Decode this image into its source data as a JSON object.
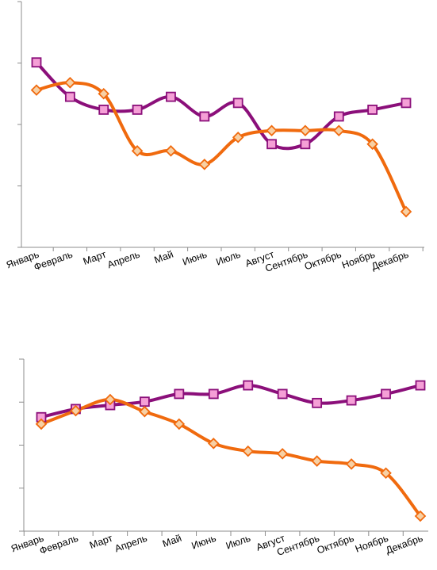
{
  "colors": {
    "purple_line": "#8b0f7a",
    "orange_line": "#f06a0e",
    "square_fill": "#f59fd6",
    "diamond_fill": "#f7d0a4",
    "axis": "#8c8c8c"
  },
  "chart_data": [
    {
      "type": "line",
      "title": "",
      "xlabel": "",
      "ylabel": "",
      "ylim": [
        0,
        4
      ],
      "grid": false,
      "legend": "none",
      "categories": [
        "Январь",
        "Февраль",
        "Март",
        "Апрель",
        "Май",
        "Июнь",
        "Июль",
        "Август",
        "Сентябрь",
        "Октябрь",
        "Ноябрь",
        "Декабрь"
      ],
      "series": [
        {
          "marker": "square",
          "color": "#8b0f7a",
          "values": [
            3.01,
            2.45,
            2.24,
            2.24,
            2.45,
            2.13,
            2.35,
            1.68,
            1.68,
            2.13,
            2.24,
            2.35
          ]
        },
        {
          "marker": "diamond",
          "color": "#f06a0e",
          "values": [
            2.56,
            2.68,
            2.5,
            1.57,
            1.57,
            1.35,
            1.79,
            1.9,
            1.9,
            1.9,
            1.68,
            0.58
          ]
        }
      ]
    },
    {
      "type": "line",
      "title": "",
      "xlabel": "",
      "ylabel": "",
      "ylim": [
        0,
        4
      ],
      "grid": false,
      "legend": "none",
      "categories": [
        "Январь",
        "Февраль",
        "Март",
        "Апрель",
        "Май",
        "Июнь",
        "Июль",
        "Август",
        "Сентябрь",
        "Октябрь",
        "Ноябрь",
        "Декабрь"
      ],
      "series": [
        {
          "marker": "square",
          "color": "#8b0f7a",
          "values": [
            2.65,
            2.84,
            2.93,
            3.01,
            3.19,
            3.19,
            3.39,
            3.19,
            2.98,
            3.04,
            3.19,
            3.39
          ]
        },
        {
          "marker": "diamond",
          "color": "#f06a0e",
          "values": [
            2.49,
            2.8,
            3.06,
            2.78,
            2.49,
            2.04,
            1.86,
            1.8,
            1.63,
            1.56,
            1.35,
            0.35
          ]
        }
      ]
    }
  ]
}
